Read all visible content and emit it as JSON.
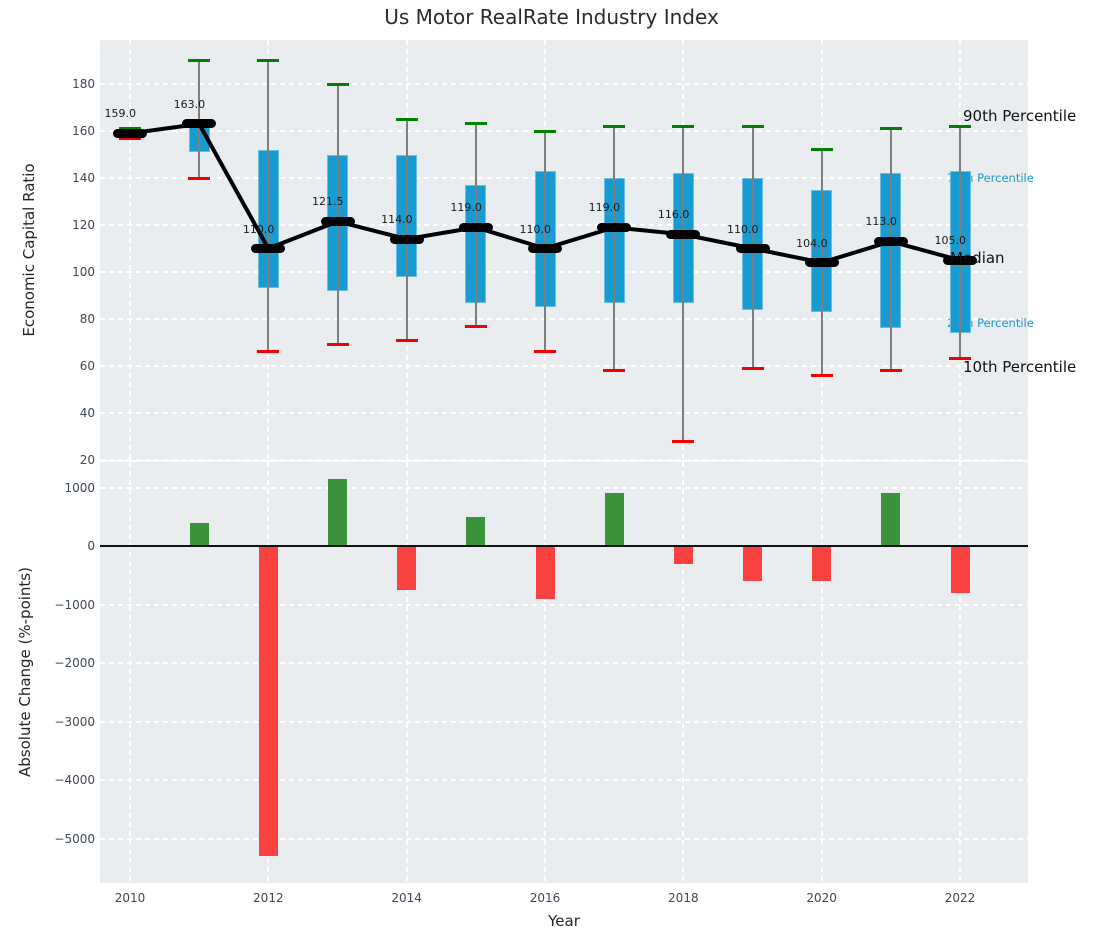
{
  "title": "Us Motor RealRate Industry Index",
  "colors": {
    "box": "#189bd1",
    "whisker": "#7e7e7e",
    "cap_top": "#007f00",
    "cap_bottom": "#f20000",
    "median": "#000000",
    "bar_positive": "#3a923a",
    "bar_negative": "#f94141",
    "plot_bg": "#e9edf0",
    "grid": "#ffffff",
    "tick_label": "#3d4a58",
    "axis_label": "#262626",
    "percentile_label_blue": "#1a99cc",
    "percentile_label_black": "#111111"
  },
  "chart_data": [
    {
      "type": "box-whisker-median-line",
      "title": "Us Motor RealRate Industry Index",
      "ylabel": "Economic Capital Ratio",
      "ylim": [
        20,
        198
      ],
      "grid": true,
      "years": [
        2010,
        2011,
        2012,
        2013,
        2014,
        2015,
        2016,
        2017,
        2018,
        2019,
        2020,
        2021,
        2022
      ],
      "series": [
        {
          "name": "90th Percentile",
          "values": [
            161,
            190,
            190,
            180,
            165,
            163,
            160,
            162,
            162,
            162,
            152,
            161,
            162
          ]
        },
        {
          "name": "75th Percentile",
          "values": [
            160,
            164,
            152,
            150,
            150,
            137,
            143,
            140,
            142,
            140,
            135,
            142,
            143
          ]
        },
        {
          "name": "Median",
          "values": [
            159,
            163,
            110,
            121.5,
            114,
            119,
            110,
            119,
            116,
            110,
            104,
            113,
            105
          ]
        },
        {
          "name": "25th Percentile",
          "values": [
            158,
            151,
            93,
            92,
            98,
            87,
            85,
            87,
            87,
            84,
            83,
            76,
            74
          ]
        },
        {
          "name": "10th Percentile",
          "values": [
            157,
            140,
            66,
            69,
            71,
            77,
            66,
            58,
            28,
            59,
            56,
            58,
            63
          ]
        }
      ],
      "median_annotations": [
        "159.0",
        "163.0",
        "110.0",
        "121.5",
        "114.0",
        "119.0",
        "110.0",
        "119.0",
        "116.0",
        "110.0",
        "104.0",
        "113.0",
        "105.0"
      ],
      "yticks": [
        {
          "value": 20,
          "label": "20"
        },
        {
          "value": 40,
          "label": "40"
        },
        {
          "value": 60,
          "label": "60"
        },
        {
          "value": 80,
          "label": "80"
        },
        {
          "value": 100,
          "label": "100"
        },
        {
          "value": 120,
          "label": "120"
        },
        {
          "value": 140,
          "label": "140"
        },
        {
          "value": 160,
          "label": "160"
        },
        {
          "value": 180,
          "label": "180"
        }
      ],
      "right_labels": [
        {
          "text": "90th Percentile",
          "size": "large",
          "color": "#111111"
        },
        {
          "text": "75th Percentile",
          "size": "small",
          "color": "#1a99cc"
        },
        {
          "text": "Median",
          "size": "large",
          "color": "#111111"
        },
        {
          "text": "25th Percentile",
          "size": "small",
          "color": "#1a99cc"
        },
        {
          "text": "10th Percentile",
          "size": "large",
          "color": "#111111"
        }
      ]
    },
    {
      "type": "bar",
      "ylabel": "Absolute Change (%-points)",
      "xlabel": "Year",
      "grid": true,
      "years": [
        2011,
        2012,
        2013,
        2014,
        2015,
        2016,
        2017,
        2018,
        2019,
        2020,
        2021,
        2022
      ],
      "values": [
        400,
        -5300,
        1150,
        -750,
        500,
        -900,
        900,
        -300,
        -600,
        -600,
        900,
        -800
      ],
      "ylim": [
        -5730,
        1430
      ],
      "yticks": [
        {
          "value": 1000,
          "label": "1000"
        },
        {
          "value": 0,
          "label": "0"
        },
        {
          "value": -1000,
          "label": "−1000"
        },
        {
          "value": -2000,
          "label": "−2000"
        },
        {
          "value": -3000,
          "label": "−3000"
        },
        {
          "value": -4000,
          "label": "−4000"
        },
        {
          "value": -5000,
          "label": "−5000"
        }
      ],
      "xticks": [
        {
          "value": 2010,
          "label": "2010"
        },
        {
          "value": 2012,
          "label": "2012"
        },
        {
          "value": 2014,
          "label": "2014"
        },
        {
          "value": 2016,
          "label": "2016"
        },
        {
          "value": 2018,
          "label": "2018"
        },
        {
          "value": 2020,
          "label": "2020"
        },
        {
          "value": 2022,
          "label": "2022"
        }
      ]
    }
  ]
}
